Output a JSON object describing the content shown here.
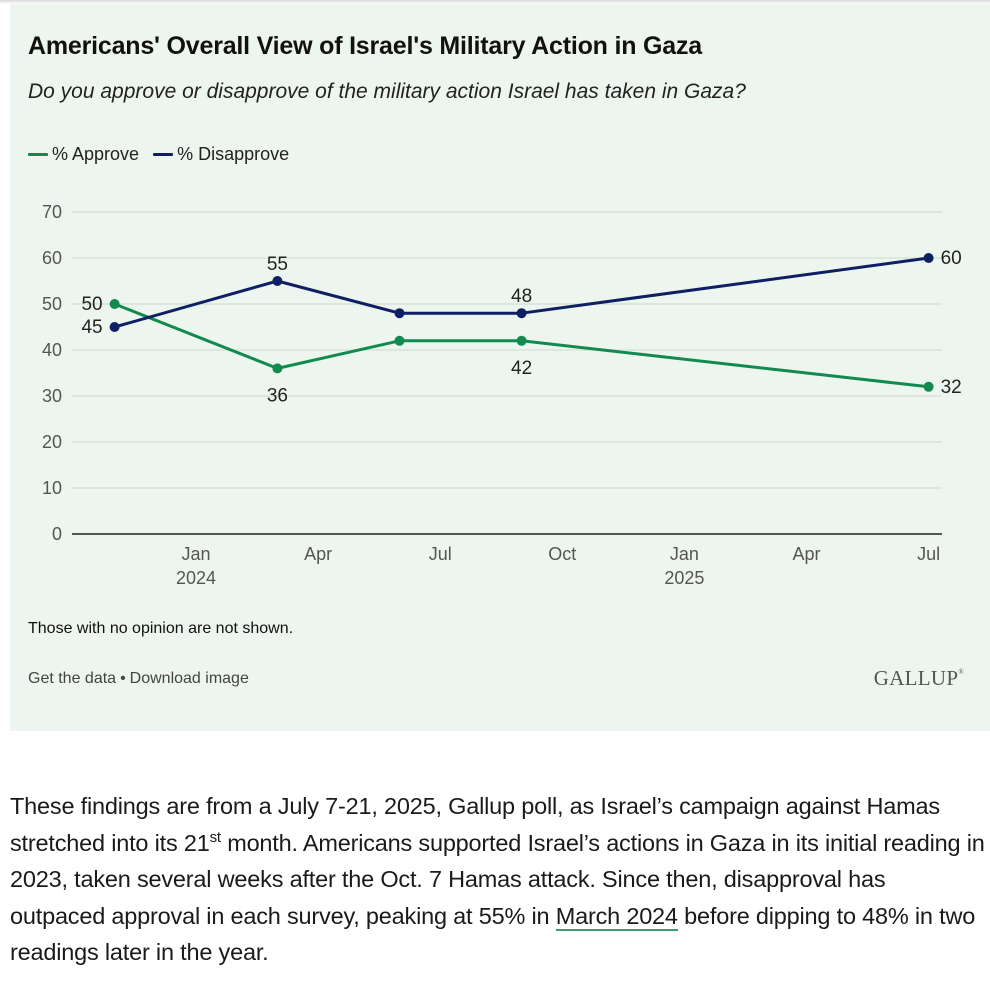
{
  "header": {
    "title": "Americans' Overall View of Israel's Military Action in Gaza",
    "subtitle": "Do you approve or disapprove of the military action Israel has taken in Gaza?"
  },
  "colors": {
    "approve": "#128a4f",
    "disapprove": "#0e1f63",
    "background": "#edf6ee",
    "gridline": "#d7e2d8",
    "axis": "#222222",
    "tick_text": "#555555",
    "link_underline": "#3f9a6f"
  },
  "chart_data": {
    "type": "line",
    "title": "Americans' Overall View of Israel's Military Action in Gaza",
    "subtitle": "Do you approve or disapprove of the military action Israel has taken in Gaza?",
    "xlabel": "",
    "ylabel": "",
    "ylim": [
      0,
      70
    ],
    "yticks": [
      0,
      10,
      20,
      30,
      40,
      50,
      60,
      70
    ],
    "grid": true,
    "legend_position": "top-left",
    "x_range_months": [
      "2023-11",
      "2025-07"
    ],
    "x_ticks": [
      {
        "month": "2024-01",
        "label": "Jan",
        "sublabel": "2024"
      },
      {
        "month": "2024-04",
        "label": "Apr",
        "sublabel": ""
      },
      {
        "month": "2024-07",
        "label": "Jul",
        "sublabel": ""
      },
      {
        "month": "2024-10",
        "label": "Oct",
        "sublabel": ""
      },
      {
        "month": "2025-01",
        "label": "Jan",
        "sublabel": "2025"
      },
      {
        "month": "2025-04",
        "label": "Apr",
        "sublabel": ""
      },
      {
        "month": "2025-07",
        "label": "Jul",
        "sublabel": ""
      }
    ],
    "x": [
      "2023-11",
      "2024-03",
      "2024-06",
      "2024-09",
      "2025-07"
    ],
    "series": [
      {
        "name": "% Approve",
        "key": "approve",
        "values": [
          50,
          36,
          42,
          42,
          32
        ],
        "labels_shown": [
          true,
          true,
          false,
          true,
          true
        ],
        "label_placement": [
          "left",
          "below",
          "none",
          "below",
          "right"
        ]
      },
      {
        "name": "% Disapprove",
        "key": "disapprove",
        "values": [
          45,
          55,
          48,
          48,
          60
        ],
        "labels_shown": [
          true,
          true,
          false,
          true,
          true
        ],
        "label_placement": [
          "left",
          "above",
          "none",
          "above",
          "right"
        ]
      }
    ]
  },
  "footer": {
    "note": "Those with no opinion are not shown.",
    "get_data_label": "Get the data",
    "separator": "•",
    "download_label": "Download image",
    "logo": "GALLUP"
  },
  "article": {
    "p1_part1": "These findings are from a July 7-21, 2025, Gallup poll, as Israel’s campaign against Hamas stretched into its 21",
    "p1_sup": "st",
    "p1_part2": " month. Americans supported Israel’s actions in Gaza in its initial reading in 2023, taken several weeks after the Oct. 7 Hamas attack. Since then, disapproval has outpaced approval in each survey, peaking at 55% in ",
    "p1_link": "March 2024",
    "p1_part3": " before dipping to 48% in two readings later in the year."
  }
}
